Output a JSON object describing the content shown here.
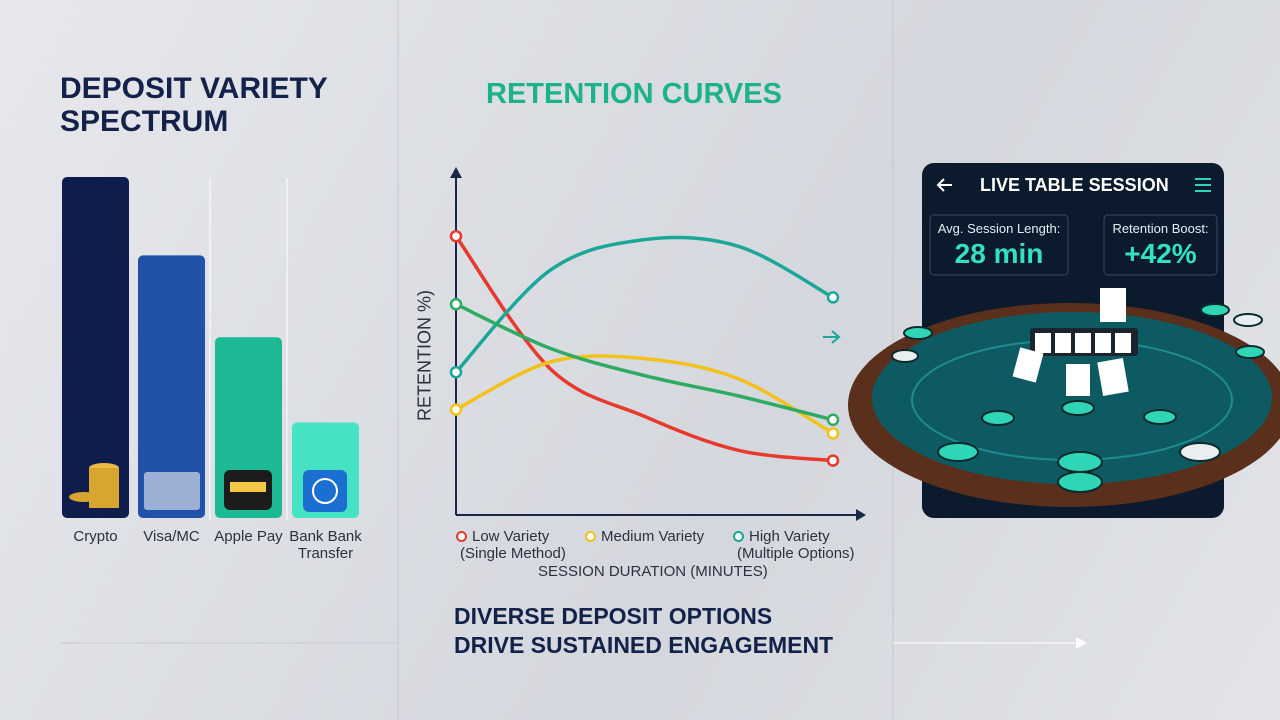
{
  "chart_data": [
    {
      "type": "bar",
      "title": "DEPOSIT VARIETY SPECTRUM",
      "categories": [
        "Crypto",
        "Visa/MC",
        "Apple Pay",
        "Bank Bank Transfer"
      ],
      "values": [
        100,
        77,
        53,
        28
      ],
      "colors": [
        "#0e1d4b",
        "#1f52a8",
        "#1db894",
        "#45e2c4"
      ]
    },
    {
      "type": "line",
      "title": "RETENTION CURVES",
      "x_label": "SESSION DURATION (MINUTES)",
      "y_label": "RETENTION %)",
      "x": [
        0,
        1,
        2,
        3,
        4
      ],
      "xlim": [
        0,
        4
      ],
      "ylim": [
        0,
        100
      ],
      "series": [
        {
          "name": "Low Variety (Single Method)",
          "color": "#e8392d",
          "values": [
            82,
            43,
            29,
            19,
            16
          ]
        },
        {
          "name": "Medium Variety",
          "color": "#f2c21b",
          "values": [
            31,
            45,
            46,
            40,
            24
          ]
        },
        {
          "name": "High Variety (Multiple Options)",
          "color": "#1aa79a",
          "values": [
            42,
            72,
            81,
            79,
            64
          ]
        },
        {
          "color": "#2eaa62",
          "values": [
            62,
            49,
            41,
            35,
            28
          ]
        }
      ]
    }
  ],
  "headline": [
    "DIVERSE DEPOSIT OPTIONS",
    "DRIVE SUSTAINED ENGAGEMENT"
  ],
  "panel": {
    "title": "LIVE TABLE SESSION",
    "stats": [
      {
        "label": "Avg. Session Length:",
        "value": "28 min"
      },
      {
        "label": "Retention Boost:",
        "value": "+42%"
      }
    ]
  }
}
